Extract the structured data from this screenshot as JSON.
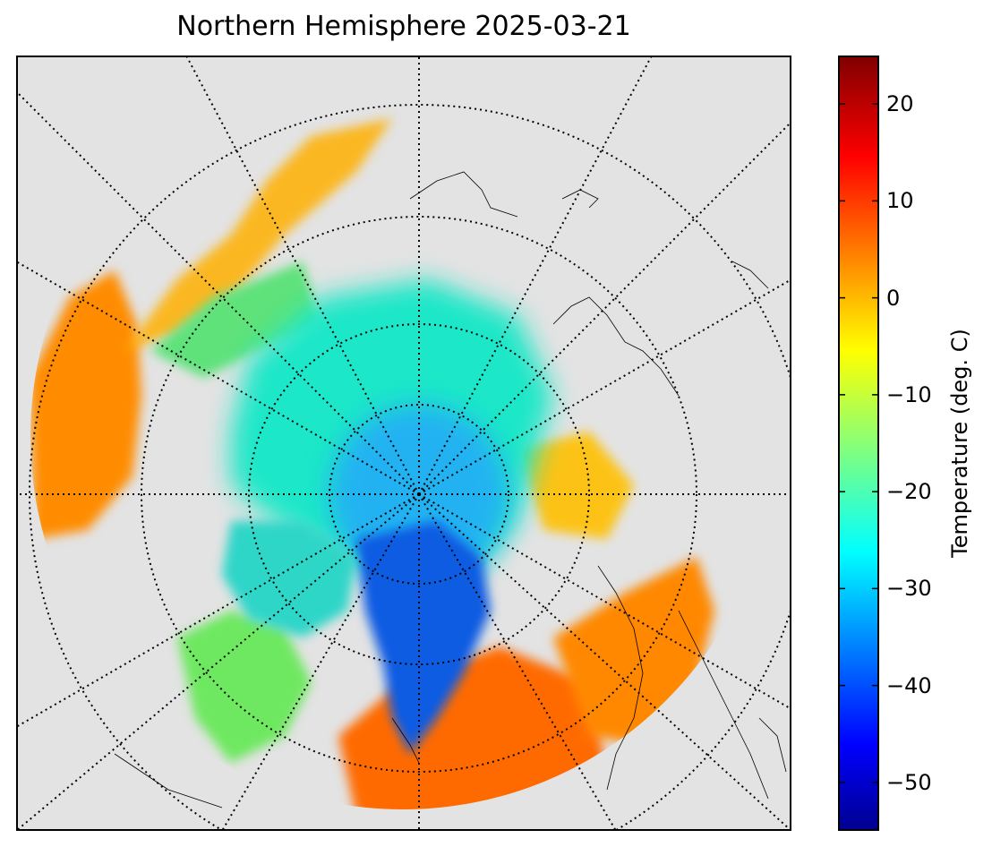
{
  "title": "Northern Hemisphere 2025-03-21",
  "colorbar": {
    "label": "Temperature (deg. C)",
    "ticks": [
      "20",
      "10",
      "0",
      "−10",
      "−20",
      "−30",
      "−40",
      "−50"
    ],
    "range": [
      -55,
      25
    ],
    "colormap": "jet"
  },
  "map": {
    "projection": "north-polar-stereographic",
    "graticule": "dotted",
    "background_color": "#e3e3e3",
    "coastline_color": "#000000"
  }
}
